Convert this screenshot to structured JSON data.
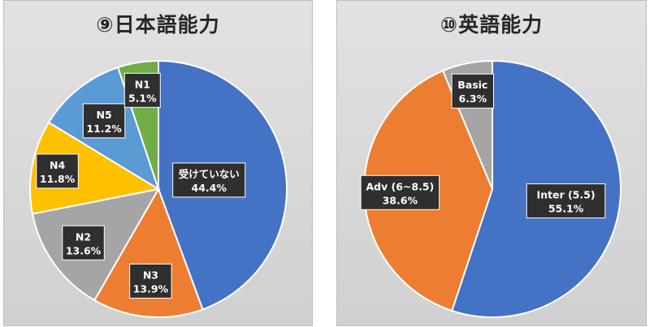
{
  "chart_data": [
    {
      "type": "pie",
      "title": "⑨日本語能力",
      "slices": [
        {
          "label": "受けていない",
          "value": 44.4,
          "display": "44.4%",
          "color": "#4472C4"
        },
        {
          "label": "N3",
          "value": 13.9,
          "display": "13.9%",
          "color": "#ED7D31"
        },
        {
          "label": "N2",
          "value": 13.6,
          "display": "13.6%",
          "color": "#A5A5A5"
        },
        {
          "label": "N4",
          "value": 11.8,
          "display": "11.8%",
          "color": "#FFC000"
        },
        {
          "label": "N5",
          "value": 11.2,
          "display": "11.2%",
          "color": "#5B9BD5"
        },
        {
          "label": "N1",
          "value": 5.1,
          "display": "5.1%",
          "color": "#70AD47"
        }
      ]
    },
    {
      "type": "pie",
      "title": "⑩英語能力",
      "slices": [
        {
          "label": "Inter (5.5)",
          "value": 55.1,
          "display": "55.1%",
          "color": "#4472C4"
        },
        {
          "label": "Adv (6~8.5)",
          "value": 38.6,
          "display": "38.6%",
          "color": "#ED7D31"
        },
        {
          "label": "Basic",
          "value": 6.3,
          "display": "6.3%",
          "color": "#A5A5A5"
        }
      ]
    }
  ]
}
